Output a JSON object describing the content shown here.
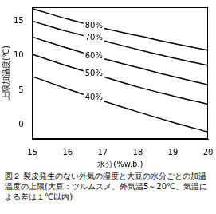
{
  "chart_data": {
    "type": "line",
    "title": "図２ 裂皮発生のない外気の湿度と大豆の水分ごとの加温温度の上限(大豆：ツルムスメ、外気温5～20℃、気温による差は１℃以内)",
    "x_label": "水分(%w.b.)",
    "y_label": "上限加温度(℃)",
    "x": [
      15,
      16,
      17,
      18,
      19,
      20
    ],
    "series": [
      {
        "name": "80%",
        "color": "#000000",
        "values": [
          16.8,
          15.3,
          14.0,
          12.9,
          11.8,
          10.8
        ]
      },
      {
        "name": "70%",
        "color": "#000000",
        "values": [
          15.0,
          13.5,
          12.2,
          10.9,
          9.7,
          8.6
        ]
      },
      {
        "name": "60%",
        "color": "#000000",
        "values": [
          12.7,
          11.1,
          9.6,
          8.3,
          7.0,
          5.8
        ]
      },
      {
        "name": "50%",
        "color": "#000000",
        "values": [
          10.2,
          8.5,
          7.0,
          5.5,
          4.2,
          3.0
        ]
      },
      {
        "name": "40%",
        "color": "#000000",
        "values": [
          7.0,
          5.2,
          3.5,
          1.9,
          0.4,
          -1.0
        ]
      }
    ],
    "xlim": [
      15,
      20
    ],
    "xticks": [
      15,
      16,
      17,
      18,
      19,
      20
    ],
    "ylim": [
      -2,
      17
    ],
    "yticks": [
      0,
      5,
      10,
      15
    ],
    "grid": false
  }
}
